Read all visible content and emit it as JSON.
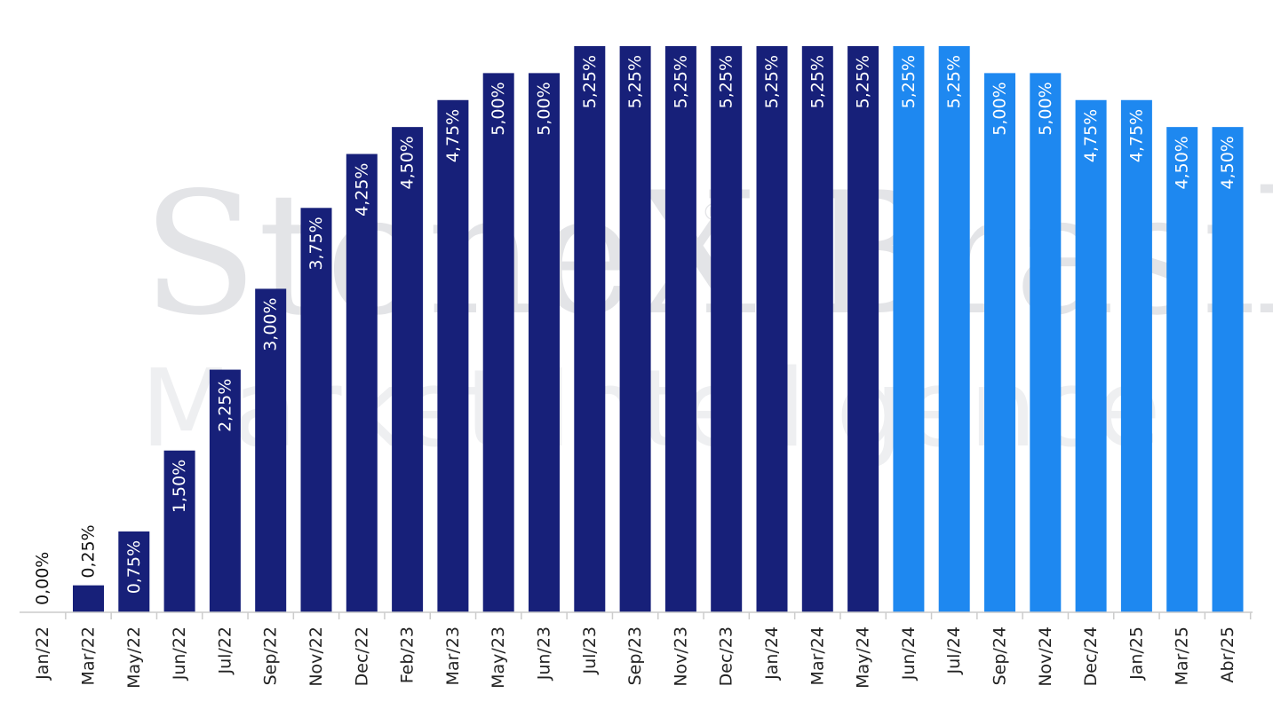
{
  "watermark": {
    "main": "StoneX Brasil",
    "sub": "Market Intelligence",
    "registered": "®"
  },
  "colors": {
    "historical": "#172079",
    "projection": "#1e88f0",
    "axis": "#cccccc",
    "label_on_bar": "#ffffff",
    "label_above": "#111111"
  },
  "chart_data": {
    "type": "bar",
    "title": "",
    "xlabel": "",
    "ylabel": "",
    "ylim": [
      0,
      5.25
    ],
    "grid": false,
    "categories": [
      "Jan/22",
      "Mar/22",
      "May/22",
      "Jun/22",
      "Jul/22",
      "Sep/22",
      "Nov/22",
      "Dec/22",
      "Feb/23",
      "Mar/23",
      "May/23",
      "Jun/23",
      "Jul/23",
      "Sep/23",
      "Nov/23",
      "Dec/23",
      "Jan/24",
      "Mar/24",
      "May/24",
      "Jun/24",
      "Jul/24",
      "Sep/24",
      "Nov/24",
      "Dec/24",
      "Jan/25",
      "Mar/25",
      "Abr/25"
    ],
    "values": [
      0.0,
      0.25,
      0.75,
      1.5,
      2.25,
      3.0,
      3.75,
      4.25,
      4.5,
      4.75,
      5.0,
      5.0,
      5.25,
      5.25,
      5.25,
      5.25,
      5.25,
      5.25,
      5.25,
      5.25,
      5.25,
      5.0,
      5.0,
      4.75,
      4.75,
      4.5,
      4.5
    ],
    "labels": [
      "0,00%",
      "0,25%",
      "0,75%",
      "1,50%",
      "2,25%",
      "3,00%",
      "3,75%",
      "4,25%",
      "4,50%",
      "4,75%",
      "5,00%",
      "5,00%",
      "5,25%",
      "5,25%",
      "5,25%",
      "5,25%",
      "5,25%",
      "5,25%",
      "5,25%",
      "5,25%",
      "5,25%",
      "5,00%",
      "5,00%",
      "4,75%",
      "4,75%",
      "4,50%",
      "4,50%"
    ],
    "segment": [
      "historical",
      "historical",
      "historical",
      "historical",
      "historical",
      "historical",
      "historical",
      "historical",
      "historical",
      "historical",
      "historical",
      "historical",
      "historical",
      "historical",
      "historical",
      "historical",
      "historical",
      "historical",
      "historical",
      "projection",
      "projection",
      "projection",
      "projection",
      "projection",
      "projection",
      "projection",
      "projection"
    ]
  }
}
